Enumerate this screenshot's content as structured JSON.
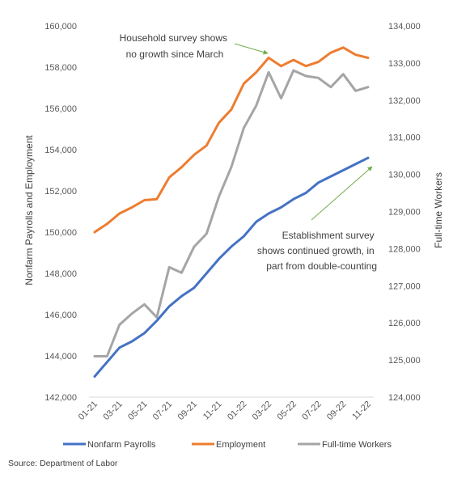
{
  "chart_data": {
    "type": "line",
    "title": "",
    "x": [
      "01-21",
      "02-21",
      "03-21",
      "04-21",
      "05-21",
      "06-21",
      "07-21",
      "08-21",
      "09-21",
      "10-21",
      "11-21",
      "12-21",
      "01-22",
      "02-22",
      "03-22",
      "04-22",
      "05-22",
      "06-22",
      "07-22",
      "08-22",
      "09-22",
      "10-22",
      "11-22"
    ],
    "x_tick_labels": [
      "01-21",
      "03-21",
      "05-21",
      "07-21",
      "09-21",
      "11-21",
      "01-22",
      "03-22",
      "05-22",
      "07-22",
      "09-22",
      "11-22"
    ],
    "ylabel_left": "Nonfarm Payrolls and Employment",
    "ylabel_right": "Full-time Workers",
    "ylim_left": [
      142000,
      160000
    ],
    "ylim_right": [
      124000,
      134000
    ],
    "yticks_left": [
      "142,000",
      "144,000",
      "146,000",
      "148,000",
      "150,000",
      "152,000",
      "154,000",
      "156,000",
      "158,000",
      "160,000"
    ],
    "yticks_right": [
      "124,000",
      "125,000",
      "126,000",
      "127,000",
      "128,000",
      "129,000",
      "130,000",
      "131,000",
      "132,000",
      "133,000",
      "134,000"
    ],
    "grid": false,
    "legend_position": "bottom",
    "series": [
      {
        "name": "Nonfarm Payrolls",
        "axis": "left",
        "color": "#4472c4",
        "values": [
          143000,
          143700,
          144400,
          144700,
          145100,
          145700,
          146400,
          146900,
          147300,
          148000,
          148700,
          149300,
          149800,
          150500,
          150900,
          151200,
          151600,
          151900,
          152400,
          152700,
          153000,
          153300,
          153600
        ]
      },
      {
        "name": "Employment",
        "axis": "left",
        "color": "#ed7d31",
        "values": [
          150000,
          150400,
          150900,
          151200,
          151550,
          151600,
          152650,
          153150,
          153750,
          154200,
          155300,
          155950,
          157200,
          157750,
          158450,
          158050,
          158350,
          158050,
          158250,
          158700,
          158950,
          158600,
          158450
        ]
      },
      {
        "name": "Full-time Workers",
        "axis": "right",
        "color": "#a5a5a5",
        "values": [
          125100,
          125100,
          125950,
          126250,
          126500,
          126150,
          127500,
          127350,
          128050,
          128400,
          129400,
          130200,
          131250,
          131850,
          132750,
          132050,
          132800,
          132650,
          132600,
          132350,
          132700,
          132250,
          132350
        ]
      }
    ],
    "annotations": [
      {
        "lines": [
          "Household survey shows",
          "no growth since March"
        ]
      },
      {
        "lines": [
          "Establishment survey",
          "shows continued growth, in",
          "part from double-counting"
        ]
      }
    ]
  },
  "source": "Source: Department of Labor"
}
